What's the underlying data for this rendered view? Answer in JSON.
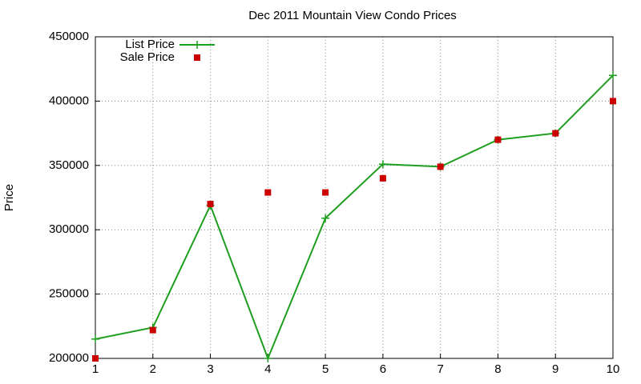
{
  "chart_data": {
    "type": "line",
    "title": "Dec 2011 Mountain View Condo Prices",
    "y_label": "Price",
    "x": [
      1,
      2,
      3,
      4,
      5,
      6,
      7,
      8,
      9,
      10
    ],
    "xlim": [
      1,
      10
    ],
    "xticks": [
      1,
      2,
      3,
      4,
      5,
      6,
      7,
      8,
      9,
      10
    ],
    "ylim": [
      200000,
      450000
    ],
    "yticks": [
      200000,
      250000,
      300000,
      350000,
      400000,
      450000
    ],
    "grid": true,
    "legend": "top-left",
    "series": [
      {
        "name": "List Price",
        "color": "#1e9e1e",
        "mode": "lines+markers",
        "values": [
          215000,
          224000,
          319000,
          200000,
          309000,
          351000,
          349000,
          370000,
          375000,
          420000
        ]
      },
      {
        "name": "Sale Price",
        "color": "#cc0000",
        "mode": "markers",
        "values": [
          200000,
          222000,
          320000,
          329000,
          329000,
          340000,
          349000,
          370000,
          375000,
          400000
        ]
      }
    ]
  }
}
